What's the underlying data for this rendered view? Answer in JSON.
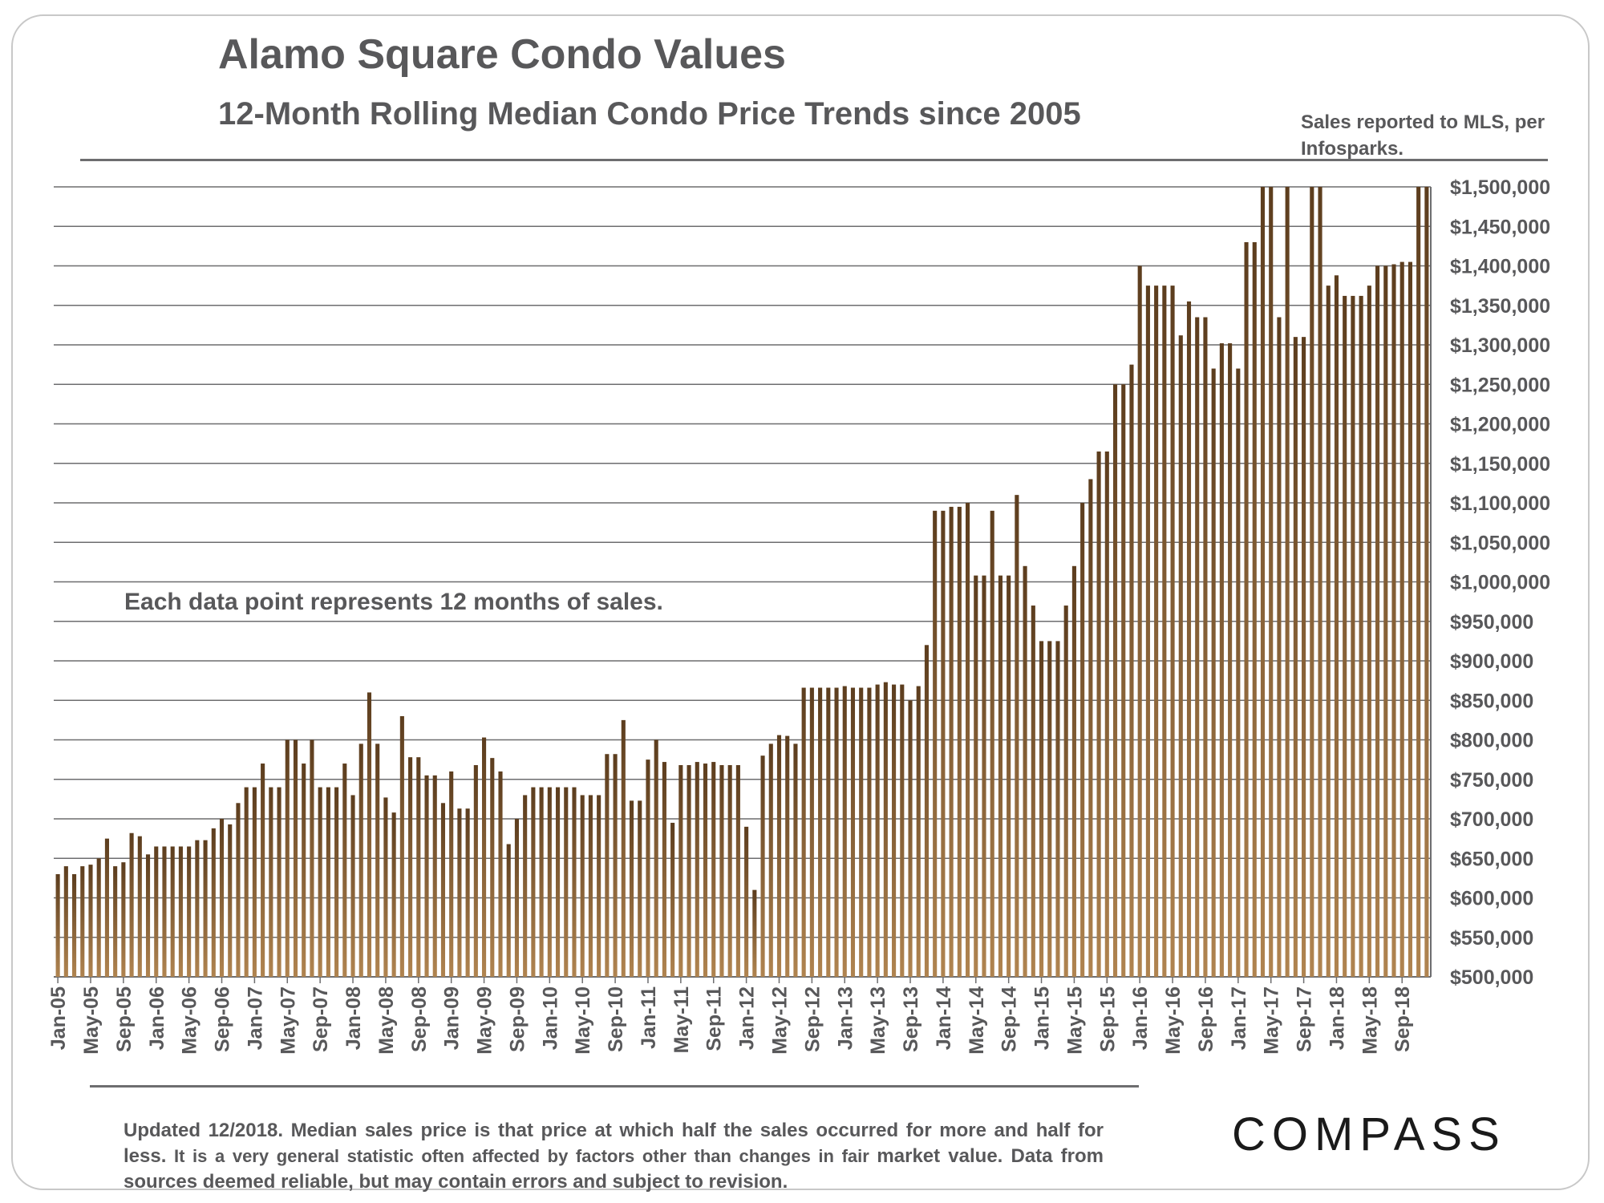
{
  "header": {
    "title": "Alamo Square Condo Values",
    "subtitle": "12-Month Rolling Median Condo Price Trends since 2005",
    "source_note": "Sales reported to MLS, per Infosparks."
  },
  "footer": {
    "note_bold": "Updated 12/2018. Median sales price is that price at which half the sales occurred for more and half for less.",
    "note_small": " It is a very general statistic often affected by factors other than changes in fair ",
    "note_end": "market value. Data from sources deemed reliable, but may contain errors and subject to revision.",
    "logo_text": "COMPASS"
  },
  "colors": {
    "bar_top": "#5c3d1e",
    "bar_bottom": "#b08450",
    "grid": "#6d6d6f",
    "text": "#58585a"
  },
  "chart_data": {
    "type": "bar",
    "title": "Alamo Square Condo Values",
    "subtitle": "12-Month Rolling Median Condo Price Trends since 2005",
    "annotation": "Each data point represents 12 months of sales.",
    "ylim": [
      500000,
      1500000
    ],
    "y_ticks": [
      "$500,000",
      "$550,000",
      "$600,000",
      "$650,000",
      "$700,000",
      "$750,000",
      "$800,000",
      "$850,000",
      "$900,000",
      "$950,000",
      "$1,000,000",
      "$1,050,000",
      "$1,100,000",
      "$1,150,000",
      "$1,200,000",
      "$1,250,000",
      "$1,300,000",
      "$1,350,000",
      "$1,400,000",
      "$1,450,000",
      "$1,500,000"
    ],
    "y_axis_side": "right",
    "grid": true,
    "x_tick_labels": [
      "Jan-05",
      "May-05",
      "Sep-05",
      "Jan-06",
      "May-06",
      "Sep-06",
      "Jan-07",
      "May-07",
      "Sep-07",
      "Jan-08",
      "May-08",
      "Sep-08",
      "Jan-09",
      "May-09",
      "Sep-09",
      "Jan-10",
      "May-10",
      "Sep-10",
      "Jan-11",
      "May-11",
      "Sep-11",
      "Jan-12",
      "May-12",
      "Sep-12",
      "Jan-13",
      "May-13",
      "Sep-13",
      "Jan-14",
      "May-14",
      "Sep-14",
      "Jan-15",
      "May-15",
      "Sep-15",
      "Jan-16",
      "May-16",
      "Sep-16",
      "Jan-17",
      "May-17",
      "Sep-17",
      "Jan-18",
      "May-18",
      "Sep-18"
    ],
    "x_tick_every": 4,
    "x_start": "Jan-05",
    "values": [
      630000,
      640000,
      630000,
      640000,
      642000,
      650000,
      675000,
      640000,
      645000,
      682000,
      678000,
      655000,
      665000,
      665000,
      665000,
      665000,
      665000,
      673000,
      673000,
      688000,
      700000,
      693000,
      720000,
      740000,
      740000,
      770000,
      740000,
      740000,
      800000,
      800000,
      770000,
      800000,
      740000,
      740000,
      740000,
      770000,
      730000,
      795000,
      860000,
      795000,
      727000,
      708000,
      830000,
      778000,
      778000,
      755000,
      755000,
      720000,
      760000,
      713000,
      713000,
      768000,
      803000,
      777000,
      760000,
      668000,
      700000,
      730000,
      740000,
      740000,
      740000,
      740000,
      740000,
      740000,
      730000,
      730000,
      730000,
      782000,
      782000,
      825000,
      723000,
      723000,
      775000,
      800000,
      772000,
      695000,
      768000,
      768000,
      772000,
      770000,
      772000,
      768000,
      768000,
      768000,
      690000,
      610000,
      780000,
      795000,
      806000,
      805000,
      795000,
      866000,
      866000,
      866000,
      866000,
      866000,
      868000,
      866000,
      866000,
      866000,
      870000,
      873000,
      870000,
      870000,
      850000,
      868000,
      920000,
      1090000,
      1090000,
      1095000,
      1095000,
      1100000,
      1008000,
      1008000,
      1090000,
      1008000,
      1008000,
      1110000,
      1020000,
      970000,
      925000,
      925000,
      925000,
      970000,
      1020000,
      1100000,
      1130000,
      1165000,
      1165000,
      1250000,
      1250000,
      1275000,
      1400000,
      1375000,
      1375000,
      1375000,
      1375000,
      1312000,
      1355000,
      1335000,
      1335000,
      1270000,
      1302000,
      1302000,
      1270000,
      1430000,
      1430000,
      1500000,
      1500000,
      1335000,
      1500000,
      1310000,
      1310000,
      1500000,
      1500000,
      1375000,
      1388000,
      1362000,
      1362000,
      1362000,
      1375000,
      1400000,
      1400000,
      1402000,
      1405000,
      1405000,
      1500000,
      1500000
    ]
  }
}
